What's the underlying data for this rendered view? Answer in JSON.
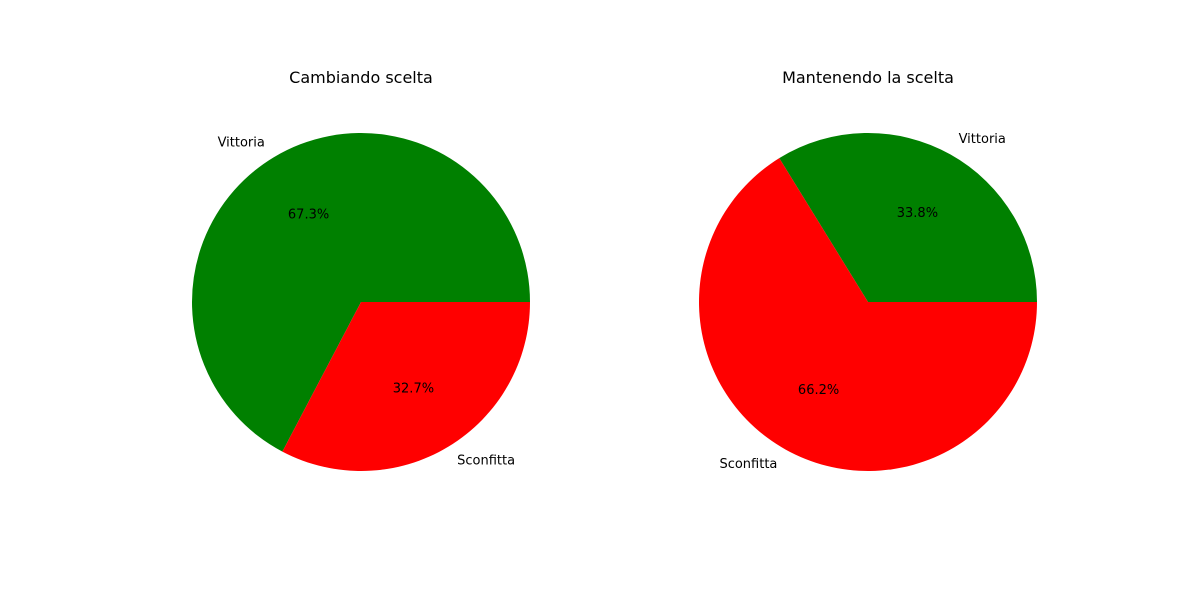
{
  "chart_data": [
    {
      "type": "pie",
      "title": "Cambiando scelta",
      "labels": [
        "Vittoria",
        "Sconfitta"
      ],
      "values": [
        67.3,
        32.7
      ],
      "autopct": [
        "67.3%",
        "32.7%"
      ],
      "colors": [
        "#008000",
        "#ff0000"
      ],
      "start_angle_deg": 0,
      "direction": "counterclockwise"
    },
    {
      "type": "pie",
      "title": "Mantenendo la scelta",
      "labels": [
        "Vittoria",
        "Sconfitta"
      ],
      "values": [
        33.8,
        66.2
      ],
      "autopct": [
        "33.8%",
        "66.2%"
      ],
      "colors": [
        "#008000",
        "#ff0000"
      ],
      "start_angle_deg": 0,
      "direction": "counterclockwise"
    }
  ]
}
